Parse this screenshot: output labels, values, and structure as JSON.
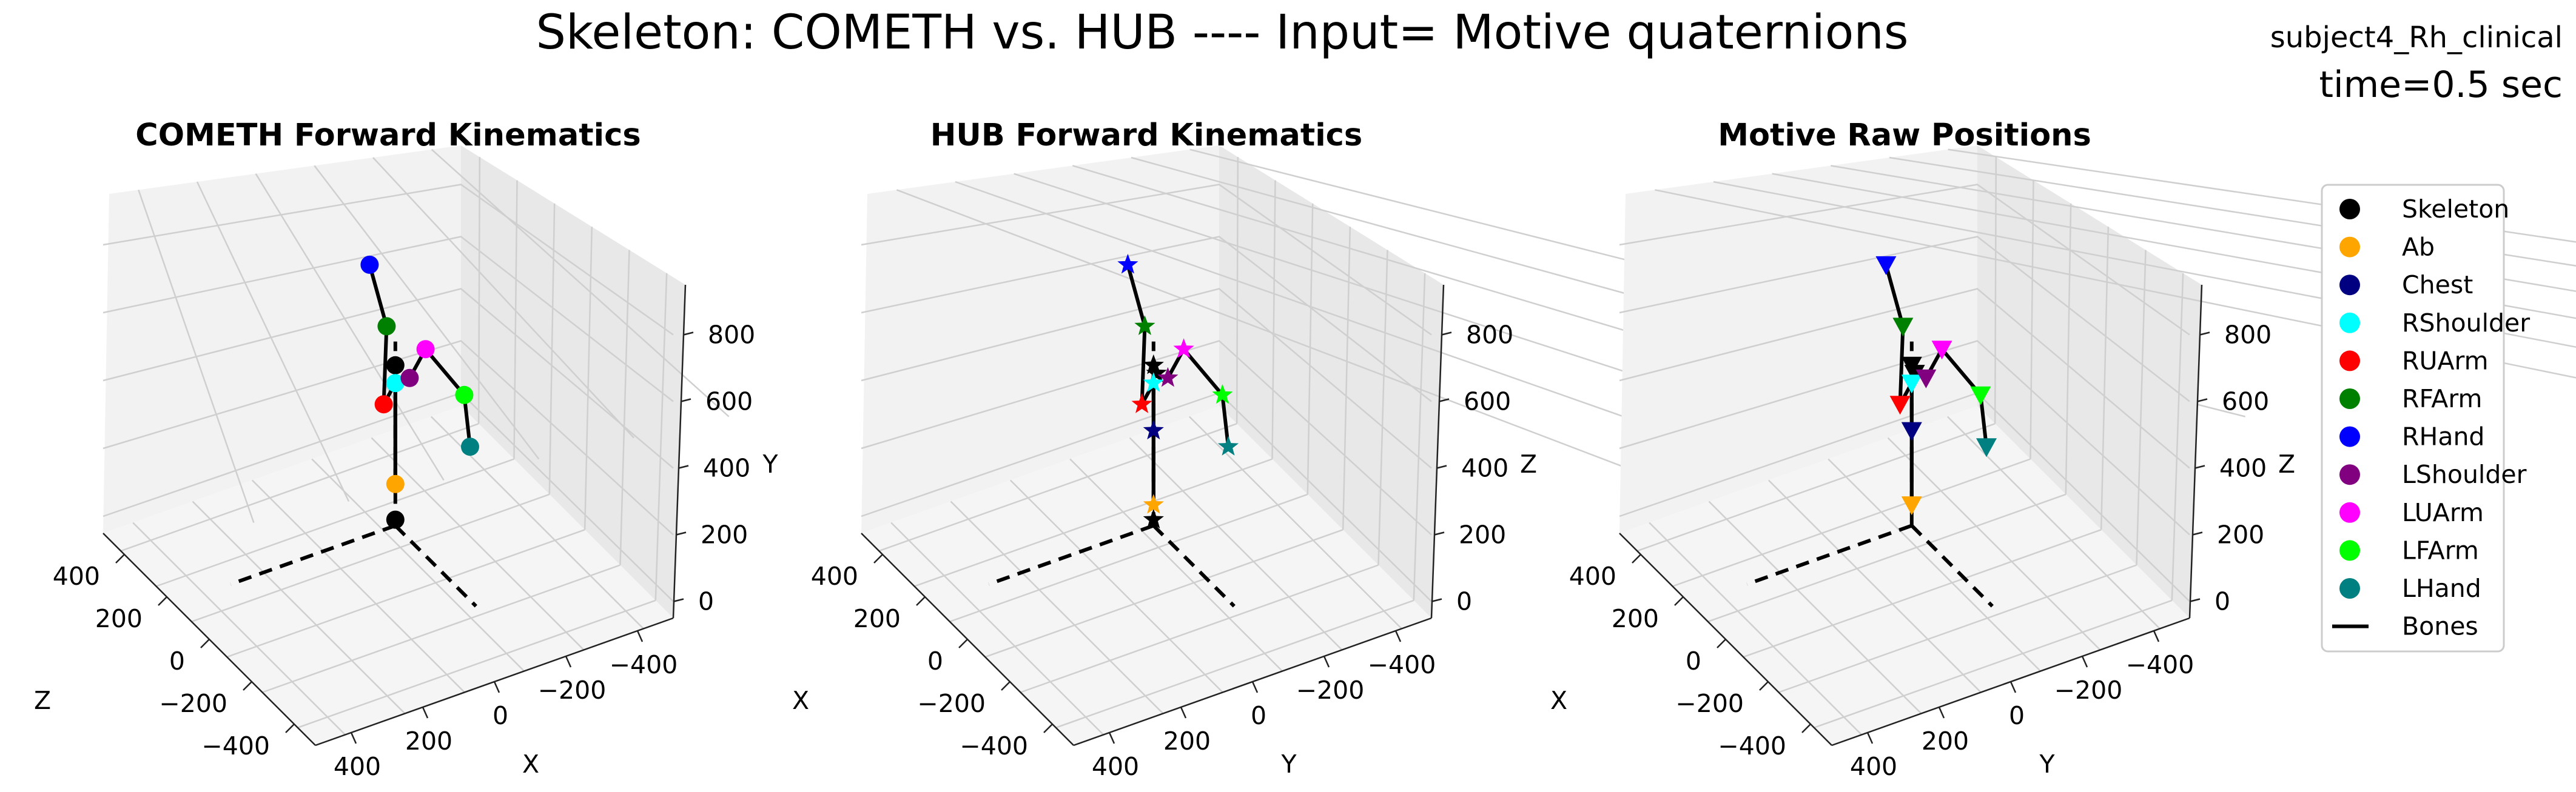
{
  "figure": {
    "title": "Skeleton: COMETH vs. HUB ---- Input= Motive quaternions",
    "subject": "subject4_Rh_clinical",
    "time_label": "time=0.5 sec"
  },
  "legend": {
    "entries": [
      {
        "label": "Skeleton",
        "color": "#000000"
      },
      {
        "label": "Ab",
        "color": "#ffa500"
      },
      {
        "label": "Chest",
        "color": "#000080"
      },
      {
        "label": "RShoulder",
        "color": "#00ffff"
      },
      {
        "label": "RUArm",
        "color": "#ff0000"
      },
      {
        "label": "RFArm",
        "color": "#008000"
      },
      {
        "label": "RHand",
        "color": "#0000ff"
      },
      {
        "label": "LShoulder",
        "color": "#800080"
      },
      {
        "label": "LUArm",
        "color": "#ff00ff"
      },
      {
        "label": "LFArm",
        "color": "#00ff00"
      },
      {
        "label": "LHand",
        "color": "#008080"
      }
    ],
    "bones_label": "Bones",
    "placement": "right"
  },
  "chart_data": [
    {
      "type": "scatter3d",
      "title": "COMETH Forward Kinematics",
      "marker": "circle",
      "axes": {
        "front_left": {
          "label": "Z",
          "ticks": [
            "400",
            "200",
            "0",
            "−200",
            "−400"
          ]
        },
        "front_right": {
          "label": "X",
          "ticks": [
            "400",
            "200",
            "0",
            "−200",
            "−400"
          ]
        },
        "vertical": {
          "label": "Y",
          "ticks": [
            "0",
            "200",
            "400",
            "600",
            "800"
          ]
        }
      },
      "points": [
        {
          "joint": "Skeleton",
          "u": 0.5,
          "w": 0.52,
          "h": 0.7
        },
        {
          "joint": "Skeleton",
          "u": 0.5,
          "w": 0.52,
          "h": 0.18
        },
        {
          "joint": "Ab",
          "u": 0.5,
          "w": 0.52,
          "h": 0.3
        },
        {
          "joint": "RShoulder",
          "u": 0.5,
          "w": 0.52,
          "h": 0.64
        },
        {
          "joint": "LShoulder",
          "u": 0.5,
          "w": 0.56,
          "h": 0.64
        },
        {
          "joint": "RUArm",
          "u": 0.42,
          "w": 0.44,
          "h": 0.66
        },
        {
          "joint": "RFArm",
          "u": 0.44,
          "w": 0.46,
          "h": 0.9
        },
        {
          "joint": "RHand",
          "u": 0.52,
          "w": 0.46,
          "h": 1.05
        },
        {
          "joint": "LUArm",
          "u": 0.56,
          "w": 0.64,
          "h": 0.66
        },
        {
          "joint": "LFArm",
          "u": 0.58,
          "w": 0.76,
          "h": 0.44
        },
        {
          "joint": "LHand",
          "u": 0.62,
          "w": 0.8,
          "h": 0.22
        }
      ]
    },
    {
      "type": "scatter3d",
      "title": "HUB Forward Kinematics",
      "marker": "star",
      "axes": {
        "front_left": {
          "label": "X",
          "ticks": [
            "400",
            "200",
            "0",
            "−200",
            "−400"
          ]
        },
        "front_right": {
          "label": "Y",
          "ticks": [
            "400",
            "200",
            "0",
            "−200",
            "−400"
          ]
        },
        "vertical": {
          "label": "Z",
          "ticks": [
            "0",
            "200",
            "400",
            "600",
            "800"
          ]
        }
      },
      "points": [
        {
          "joint": "Skeleton",
          "u": 0.5,
          "w": 0.52,
          "h": 0.7
        },
        {
          "joint": "Skeleton",
          "u": 0.52,
          "w": 0.54,
          "h": 0.65
        },
        {
          "joint": "Skeleton",
          "u": 0.5,
          "w": 0.52,
          "h": 0.18
        },
        {
          "joint": "Ab",
          "u": 0.5,
          "w": 0.52,
          "h": 0.23
        },
        {
          "joint": "Chest",
          "u": 0.5,
          "w": 0.52,
          "h": 0.48
        },
        {
          "joint": "RShoulder",
          "u": 0.5,
          "w": 0.52,
          "h": 0.64
        },
        {
          "joint": "LShoulder",
          "u": 0.5,
          "w": 0.56,
          "h": 0.64
        },
        {
          "joint": "RUArm",
          "u": 0.42,
          "w": 0.44,
          "h": 0.66
        },
        {
          "joint": "RFArm",
          "u": 0.44,
          "w": 0.46,
          "h": 0.9
        },
        {
          "joint": "RHand",
          "u": 0.52,
          "w": 0.46,
          "h": 1.05
        },
        {
          "joint": "LUArm",
          "u": 0.56,
          "w": 0.64,
          "h": 0.66
        },
        {
          "joint": "LFArm",
          "u": 0.58,
          "w": 0.76,
          "h": 0.44
        },
        {
          "joint": "LHand",
          "u": 0.62,
          "w": 0.8,
          "h": 0.22
        }
      ]
    },
    {
      "type": "scatter3d",
      "title": "Motive Raw Positions",
      "marker": "triangle-down",
      "axes": {
        "front_left": {
          "label": "X",
          "ticks": [
            "400",
            "200",
            "0",
            "−200",
            "−400"
          ]
        },
        "front_right": {
          "label": "Y",
          "ticks": [
            "400",
            "200",
            "0",
            "−200",
            "−400"
          ]
        },
        "vertical": {
          "label": "Z",
          "ticks": [
            "0",
            "200",
            "400",
            "600",
            "800"
          ]
        }
      },
      "points": [
        {
          "joint": "Skeleton",
          "u": 0.5,
          "w": 0.52,
          "h": 0.7
        },
        {
          "joint": "Skeleton",
          "u": 0.52,
          "w": 0.54,
          "h": 0.65
        },
        {
          "joint": "Ab",
          "u": 0.5,
          "w": 0.52,
          "h": 0.23
        },
        {
          "joint": "Chest",
          "u": 0.5,
          "w": 0.52,
          "h": 0.48
        },
        {
          "joint": "RShoulder",
          "u": 0.5,
          "w": 0.52,
          "h": 0.64
        },
        {
          "joint": "LShoulder",
          "u": 0.5,
          "w": 0.56,
          "h": 0.64
        },
        {
          "joint": "RUArm",
          "u": 0.42,
          "w": 0.44,
          "h": 0.66
        },
        {
          "joint": "RFArm",
          "u": 0.44,
          "w": 0.46,
          "h": 0.9
        },
        {
          "joint": "RHand",
          "u": 0.52,
          "w": 0.46,
          "h": 1.05
        },
        {
          "joint": "LUArm",
          "u": 0.56,
          "w": 0.64,
          "h": 0.66
        },
        {
          "joint": "LFArm",
          "u": 0.58,
          "w": 0.76,
          "h": 0.44
        },
        {
          "joint": "LHand",
          "u": 0.62,
          "w": 0.8,
          "h": 0.22
        }
      ]
    }
  ]
}
